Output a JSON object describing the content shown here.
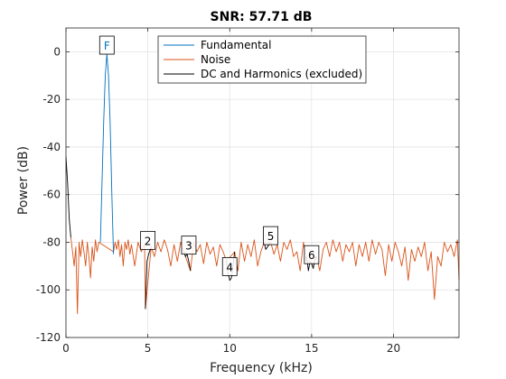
{
  "chart_data": {
    "type": "line",
    "title": "SNR:  57.71 dB",
    "xlabel": "Frequency (kHz)",
    "ylabel": "Power (dB)",
    "xlim": [
      0,
      24
    ],
    "ylim": [
      -120,
      10
    ],
    "xticks": [
      0,
      5,
      10,
      15,
      20
    ],
    "yticks": [
      -120,
      -100,
      -80,
      -60,
      -40,
      -20,
      0
    ],
    "grid": true,
    "legend": {
      "position": "top-center",
      "entries": [
        {
          "label": "Fundamental",
          "color": "#0072BD"
        },
        {
          "label": "Noise",
          "color": "#D95319"
        },
        {
          "label": "DC and Harmonics (excluded)",
          "color": "#000000"
        }
      ]
    },
    "series": [
      {
        "name": "Fundamental",
        "color": "#0072BD",
        "x": [
          2.1,
          2.2,
          2.3,
          2.4,
          2.5,
          2.6,
          2.7,
          2.8,
          2.9
        ],
        "y": [
          -80,
          -55,
          -30,
          -10,
          -1,
          -10,
          -30,
          -60,
          -85
        ]
      },
      {
        "name": "Noise",
        "color": "#D95319",
        "x": [
          0.3,
          0.4,
          0.5,
          0.6,
          0.7,
          0.8,
          0.9,
          1.0,
          1.1,
          1.2,
          1.3,
          1.4,
          1.5,
          1.6,
          1.7,
          1.8,
          1.9,
          2.0,
          2.9,
          3.0,
          3.1,
          3.2,
          3.3,
          3.4,
          3.5,
          3.6,
          3.7,
          3.8,
          3.9,
          4.0,
          4.2,
          4.4,
          4.6,
          4.8,
          4.85,
          5.2,
          5.4,
          5.6,
          5.8,
          6.0,
          6.2,
          6.4,
          6.6,
          6.8,
          7.0,
          7.2,
          7.6,
          7.8,
          8.0,
          8.2,
          8.4,
          8.6,
          8.8,
          9.0,
          9.2,
          9.4,
          9.6,
          9.8,
          10.3,
          10.5,
          10.7,
          10.9,
          11.1,
          11.3,
          11.5,
          11.7,
          11.9,
          12.1,
          12.5,
          12.7,
          12.9,
          13.1,
          13.3,
          13.5,
          13.7,
          13.9,
          14.1,
          14.3,
          14.5,
          14.7,
          15.3,
          15.5,
          15.7,
          15.9,
          16.1,
          16.3,
          16.5,
          16.7,
          16.9,
          17.1,
          17.3,
          17.5,
          17.7,
          17.9,
          18.1,
          18.3,
          18.5,
          18.7,
          18.9,
          19.1,
          19.3,
          19.5,
          19.7,
          19.9,
          20.1,
          20.3,
          20.5,
          20.7,
          20.9,
          21.1,
          21.3,
          21.5,
          21.7,
          21.9,
          22.1,
          22.3,
          22.5,
          22.7,
          22.9,
          23.1,
          23.3,
          23.5,
          23.7,
          23.9,
          24.0
        ],
        "y": [
          -78,
          -84,
          -90,
          -82,
          -110,
          -80,
          -86,
          -79,
          -84,
          -90,
          -80,
          -86,
          -95,
          -82,
          -88,
          -79,
          -84,
          -80,
          -84,
          -80,
          -83,
          -79,
          -86,
          -81,
          -90,
          -80,
          -83,
          -79,
          -85,
          -81,
          -90,
          -80,
          -84,
          -81,
          -108,
          -82,
          -86,
          -80,
          -84,
          -79,
          -83,
          -90,
          -81,
          -88,
          -80,
          -84,
          -92,
          -80,
          -84,
          -81,
          -89,
          -80,
          -85,
          -82,
          -90,
          -81,
          -84,
          -88,
          -84,
          -92,
          -80,
          -88,
          -81,
          -86,
          -79,
          -90,
          -84,
          -80,
          -80,
          -85,
          -81,
          -88,
          -80,
          -83,
          -79,
          -86,
          -84,
          -92,
          -80,
          -88,
          -86,
          -92,
          -83,
          -80,
          -86,
          -79,
          -84,
          -80,
          -88,
          -81,
          -84,
          -80,
          -90,
          -81,
          -86,
          -80,
          -88,
          -79,
          -85,
          -80,
          -83,
          -94,
          -81,
          -88,
          -80,
          -84,
          -90,
          -82,
          -96,
          -83,
          -88,
          -82,
          -86,
          -80,
          -92,
          -84,
          -104,
          -86,
          -90,
          -80,
          -84,
          -81,
          -86,
          -79,
          -96
        ]
      },
      {
        "name": "DC",
        "color": "#000000",
        "x": [
          0.0,
          0.1,
          0.2,
          0.3
        ],
        "y": [
          -44,
          -55,
          -70,
          -78
        ]
      },
      {
        "name": "H2",
        "color": "#000000",
        "x": [
          4.85,
          4.95,
          5.05,
          5.15,
          5.2
        ],
        "y": [
          -108,
          -88,
          -85,
          -83,
          -82
        ]
      },
      {
        "name": "H3",
        "color": "#000000",
        "x": [
          7.2,
          7.3,
          7.4,
          7.5,
          7.6
        ],
        "y": [
          -84,
          -86,
          -85,
          -88,
          -92
        ]
      },
      {
        "name": "H4",
        "color": "#000000",
        "x": [
          9.8,
          9.9,
          10.0,
          10.1,
          10.2,
          10.3
        ],
        "y": [
          -88,
          -93,
          -96,
          -95,
          -90,
          -84
        ]
      },
      {
        "name": "H5",
        "color": "#000000",
        "x": [
          12.1,
          12.2,
          12.3,
          12.4,
          12.5
        ],
        "y": [
          -80,
          -83,
          -82,
          -81,
          -80
        ]
      },
      {
        "name": "H6",
        "color": "#000000",
        "x": [
          14.7,
          14.8,
          14.9,
          15.0,
          15.1,
          15.2,
          15.3
        ],
        "y": [
          -86,
          -92,
          -88,
          -89,
          -91,
          -87,
          -86
        ]
      }
    ],
    "markers": [
      {
        "label": "F",
        "x": 2.5,
        "y": -1,
        "color": "#0072BD"
      },
      {
        "label": "2",
        "x": 5.0,
        "y": -83,
        "color": "#000000"
      },
      {
        "label": "3",
        "x": 7.5,
        "y": -85,
        "color": "#000000"
      },
      {
        "label": "4",
        "x": 10.0,
        "y": -94,
        "color": "#000000"
      },
      {
        "label": "5",
        "x": 12.5,
        "y": -81,
        "color": "#000000"
      },
      {
        "label": "6",
        "x": 15.0,
        "y": -89,
        "color": "#000000"
      }
    ]
  }
}
